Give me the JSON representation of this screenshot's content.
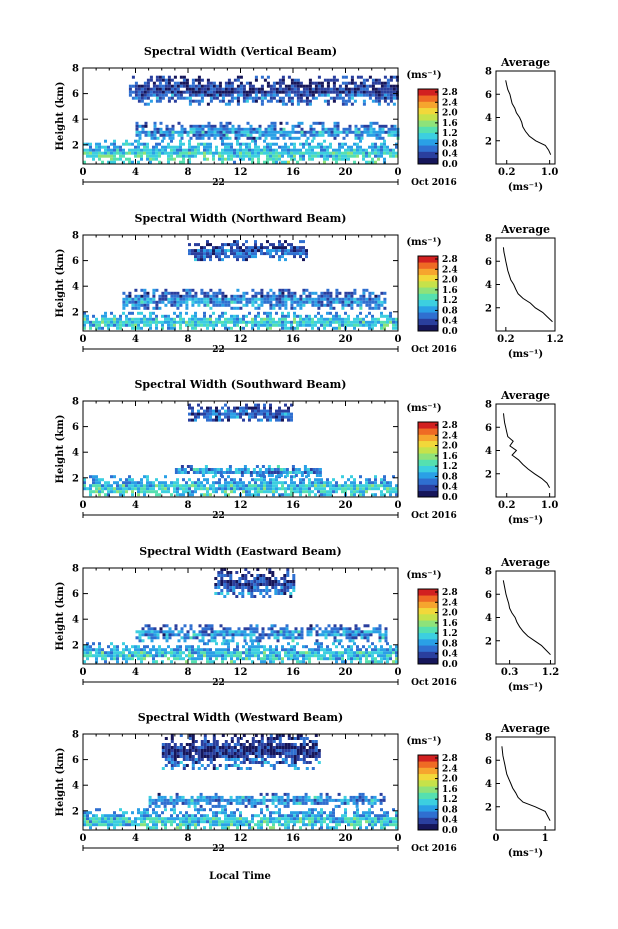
{
  "figure": {
    "xlabel": "Local Time",
    "date_label": "Oct 2016",
    "day_label": "22",
    "ylabel": "Height (km)",
    "unit_label": "(ms⁻¹)",
    "avg_title": "Average",
    "avg_xlabel": "(ms⁻¹)"
  },
  "colormap": [
    "#16165a",
    "#2a3f9e",
    "#2f6fd0",
    "#2aa0e6",
    "#3ccfe0",
    "#55e0b0",
    "#8ee27a",
    "#c6e24a",
    "#f2d83a",
    "#f6a52e",
    "#ef6a24",
    "#d22020"
  ],
  "chart_data": [
    {
      "type": "heatmap",
      "title": "Spectral Width (Vertical Beam)",
      "xlabel": "Local Time",
      "ylabel": "Height (km)",
      "xlim": [
        0,
        24
      ],
      "ylim": [
        0.5,
        8
      ],
      "xticks": [
        "0",
        "4",
        "8",
        "12",
        "16",
        "20",
        "0"
      ],
      "yticks": [
        "2",
        "4",
        "6",
        "8"
      ],
      "colorbar": {
        "label": "(ms⁻¹)",
        "ticks": [
          "0.0",
          "0.4",
          "0.8",
          "1.2",
          "1.6",
          "2.0",
          "2.4",
          "2.8"
        ],
        "range": [
          0,
          2.8
        ]
      },
      "echo_layers": [
        {
          "t_start": 0,
          "t_end": 24,
          "h_low": 0.6,
          "h_high": 2.4,
          "mean_width": 0.9
        },
        {
          "t_start": 4,
          "t_end": 24,
          "h_low": 2.4,
          "h_high": 3.8,
          "mean_width": 0.5
        },
        {
          "t_start": 3.5,
          "t_end": 24,
          "h_low": 5.2,
          "h_high": 7.4,
          "mean_width": 0.3
        }
      ],
      "average_profile": {
        "xticks": [
          "0.2",
          "1.0"
        ],
        "xlim": [
          0,
          1.1
        ],
        "height": [
          0.8,
          1.2,
          1.6,
          2.0,
          2.4,
          2.8,
          3.2,
          3.6,
          4.0,
          4.4,
          4.8,
          5.2,
          5.6,
          6.0,
          6.4,
          6.8,
          7.2
        ],
        "width": [
          1.02,
          0.98,
          0.92,
          0.74,
          0.62,
          0.55,
          0.5,
          0.48,
          0.44,
          0.38,
          0.35,
          0.3,
          0.28,
          0.26,
          0.22,
          0.2,
          0.18
        ]
      }
    },
    {
      "type": "heatmap",
      "title": "Spectral Width (Northward Beam)",
      "xlabel": "Local Time",
      "ylabel": "Height (km)",
      "xlim": [
        0,
        24
      ],
      "ylim": [
        0.5,
        8
      ],
      "xticks": [
        "0",
        "4",
        "8",
        "12",
        "16",
        "20",
        "0"
      ],
      "yticks": [
        "2",
        "4",
        "6",
        "8"
      ],
      "colorbar": {
        "label": "(ms⁻¹)",
        "ticks": [
          "0.0",
          "0.4",
          "0.8",
          "1.2",
          "1.6",
          "2.0",
          "2.4",
          "2.8"
        ],
        "range": [
          0,
          2.8
        ]
      },
      "echo_layers": [
        {
          "t_start": 0,
          "t_end": 24,
          "h_low": 0.6,
          "h_high": 2.0,
          "mean_width": 0.8
        },
        {
          "t_start": 3,
          "t_end": 23,
          "h_low": 2.2,
          "h_high": 3.8,
          "mean_width": 0.5
        },
        {
          "t_start": 8,
          "t_end": 17,
          "h_low": 6.0,
          "h_high": 7.6,
          "mean_width": 0.3
        }
      ],
      "average_profile": {
        "xticks": [
          "0.2",
          "1.2"
        ],
        "xlim": [
          0,
          1.2
        ],
        "height": [
          0.8,
          1.2,
          1.6,
          2.0,
          2.4,
          2.8,
          3.2,
          3.6,
          4.0,
          4.4,
          4.8,
          5.2,
          5.6,
          6.0,
          6.4,
          6.8,
          7.2
        ],
        "width": [
          1.15,
          1.05,
          0.95,
          0.8,
          0.7,
          0.55,
          0.45,
          0.4,
          0.36,
          0.3,
          0.27,
          0.24,
          0.22,
          0.2,
          0.18,
          0.16,
          0.15
        ]
      }
    },
    {
      "type": "heatmap",
      "title": "Spectral Width (Southward Beam)",
      "xlabel": "Local Time",
      "ylabel": "Height (km)",
      "xlim": [
        0,
        24
      ],
      "ylim": [
        0.5,
        8
      ],
      "xticks": [
        "0",
        "4",
        "8",
        "12",
        "16",
        "20",
        "0"
      ],
      "yticks": [
        "2",
        "4",
        "6",
        "8"
      ],
      "colorbar": {
        "label": "(ms⁻¹)",
        "ticks": [
          "0.0",
          "0.4",
          "0.8",
          "1.2",
          "1.6",
          "2.0",
          "2.4",
          "2.8"
        ],
        "range": [
          0,
          2.8
        ]
      },
      "echo_layers": [
        {
          "t_start": 0,
          "t_end": 24,
          "h_low": 0.6,
          "h_high": 2.2,
          "mean_width": 0.8
        },
        {
          "t_start": 7,
          "t_end": 18,
          "h_low": 2.2,
          "h_high": 3.0,
          "mean_width": 0.5
        },
        {
          "t_start": 8,
          "t_end": 16,
          "h_low": 6.4,
          "h_high": 7.8,
          "mean_width": 0.3
        }
      ],
      "average_profile": {
        "xticks": [
          "0.2",
          "1.0"
        ],
        "xlim": [
          0,
          1.1
        ],
        "height": [
          0.8,
          1.2,
          1.6,
          2.0,
          2.4,
          2.8,
          3.2,
          3.6,
          4.0,
          4.4,
          4.8,
          5.2,
          5.6,
          6.0,
          6.4,
          6.8,
          7.2
        ],
        "width": [
          1.0,
          0.95,
          0.85,
          0.72,
          0.6,
          0.5,
          0.42,
          0.3,
          0.38,
          0.26,
          0.32,
          0.22,
          0.2,
          0.18,
          0.16,
          0.15,
          0.14
        ]
      }
    },
    {
      "type": "heatmap",
      "title": "Spectral Width (Eastward Beam)",
      "xlabel": "Local Time",
      "ylabel": "Height (km)",
      "xlim": [
        0,
        24
      ],
      "ylim": [
        0.5,
        8
      ],
      "xticks": [
        "0",
        "4",
        "8",
        "12",
        "16",
        "20",
        "0"
      ],
      "yticks": [
        "2",
        "4",
        "6",
        "8"
      ],
      "colorbar": {
        "label": "(ms⁻¹)",
        "ticks": [
          "0.0",
          "0.4",
          "0.8",
          "1.2",
          "1.6",
          "2.0",
          "2.4",
          "2.8"
        ],
        "range": [
          0,
          2.8
        ]
      },
      "echo_layers": [
        {
          "t_start": 0,
          "t_end": 24,
          "h_low": 0.6,
          "h_high": 2.2,
          "mean_width": 0.8
        },
        {
          "t_start": 4,
          "t_end": 23,
          "h_low": 2.4,
          "h_high": 3.6,
          "mean_width": 0.5
        },
        {
          "t_start": 10,
          "t_end": 16,
          "h_low": 5.8,
          "h_high": 8.0,
          "mean_width": 0.3
        }
      ],
      "average_profile": {
        "xticks": [
          "0.3",
          "1.2"
        ],
        "xlim": [
          0,
          1.3
        ],
        "height": [
          0.8,
          1.2,
          1.6,
          2.0,
          2.4,
          2.8,
          3.2,
          3.6,
          4.0,
          4.4,
          4.8,
          5.2,
          5.6,
          6.0,
          6.4,
          6.8,
          7.2
        ],
        "width": [
          1.2,
          1.1,
          1.0,
          0.85,
          0.7,
          0.6,
          0.52,
          0.46,
          0.42,
          0.35,
          0.3,
          0.28,
          0.25,
          0.22,
          0.2,
          0.18,
          0.16
        ]
      }
    },
    {
      "type": "heatmap",
      "title": "Spectral Width (Westward Beam)",
      "xlabel": "Local Time",
      "ylabel": "Height (km)",
      "xlim": [
        0,
        24
      ],
      "ylim": [
        0.5,
        8
      ],
      "xticks": [
        "0",
        "4",
        "8",
        "12",
        "16",
        "20",
        "0"
      ],
      "yticks": [
        "2",
        "4",
        "6",
        "8"
      ],
      "colorbar": {
        "label": "(ms⁻¹)",
        "ticks": [
          "0.0",
          "0.4",
          "0.8",
          "1.2",
          "1.6",
          "2.0",
          "2.4",
          "2.8"
        ],
        "range": [
          0,
          2.8
        ]
      },
      "echo_layers": [
        {
          "t_start": 0,
          "t_end": 24,
          "h_low": 0.6,
          "h_high": 2.2,
          "mean_width": 0.8
        },
        {
          "t_start": 5,
          "t_end": 23,
          "h_low": 2.4,
          "h_high": 3.4,
          "mean_width": 0.5
        },
        {
          "t_start": 6,
          "t_end": 18,
          "h_low": 5.4,
          "h_high": 8.0,
          "mean_width": 0.3
        }
      ],
      "average_profile": {
        "xticks": [
          "0",
          "1"
        ],
        "xlim": [
          0,
          1.2
        ],
        "height": [
          0.8,
          1.2,
          1.6,
          2.0,
          2.4,
          2.8,
          3.2,
          3.6,
          4.0,
          4.4,
          4.8,
          5.2,
          5.6,
          6.0,
          6.4,
          6.8,
          7.2
        ],
        "width": [
          1.1,
          1.05,
          1.0,
          0.8,
          0.55,
          0.45,
          0.4,
          0.34,
          0.3,
          0.26,
          0.22,
          0.2,
          0.18,
          0.16,
          0.14,
          0.13,
          0.12
        ]
      }
    }
  ]
}
